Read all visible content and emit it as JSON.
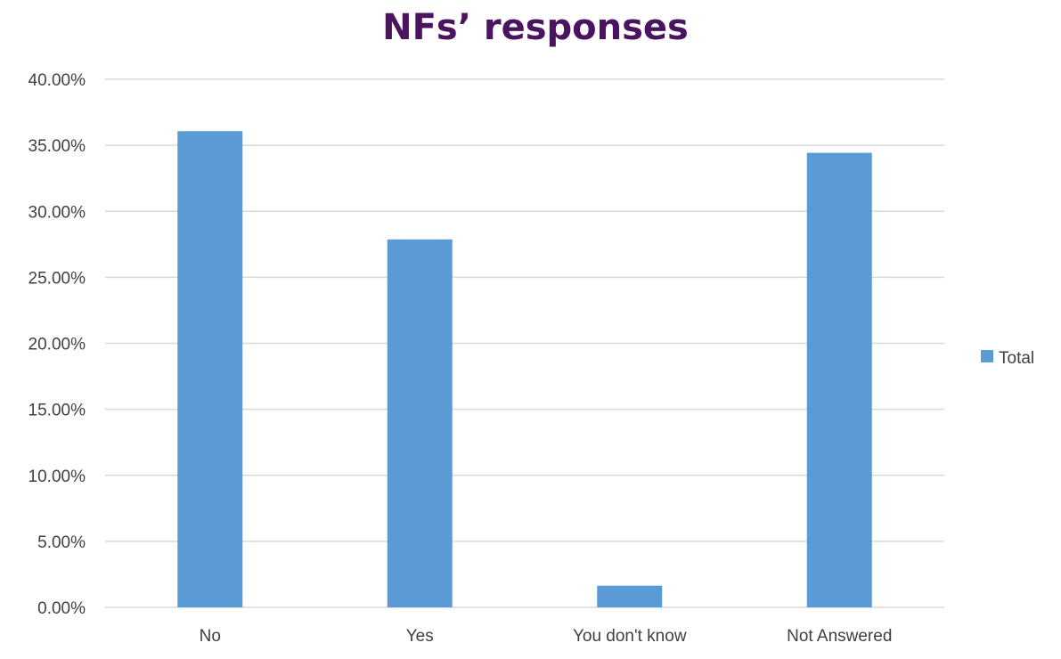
{
  "chart_data": {
    "type": "bar",
    "title": "NFs’ responses",
    "xlabel": "",
    "ylabel": "",
    "categories": [
      "No",
      "Yes",
      "You don't know",
      "Not Answered"
    ],
    "series": [
      {
        "name": "Total",
        "values": [
          36.07,
          27.87,
          1.64,
          34.43
        ],
        "color": "#5b9bd5"
      }
    ],
    "ylim": [
      0,
      40
    ],
    "ytick_step": 5,
    "ytick_labels": [
      "0.00%",
      "5.00%",
      "10.00%",
      "15.00%",
      "20.00%",
      "25.00%",
      "30.00%",
      "35.00%",
      "40.00%"
    ],
    "grid": true,
    "legend_position": "right",
    "title_color": "#4a1460"
  }
}
